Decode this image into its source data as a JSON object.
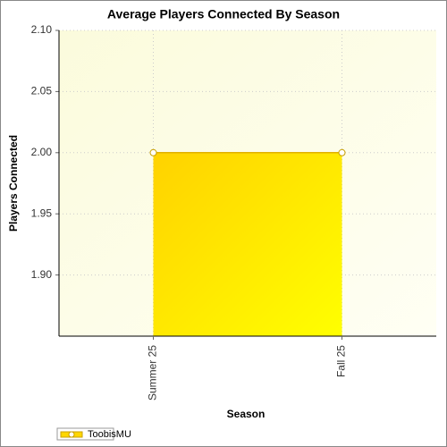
{
  "chart_data": {
    "type": "area",
    "title": "Average Players Connected By Season",
    "x_label": "Season",
    "y_label": "Players Connected",
    "categories": [
      "Summer 25",
      "Fall 25"
    ],
    "series": [
      {
        "name": "ToobisMU",
        "color": "#ffd700",
        "values": [
          2.0,
          2.0
        ]
      }
    ],
    "ylim": [
      1.85,
      2.1
    ],
    "yticks": [
      {
        "value": 1.9,
        "label": "1.90"
      },
      1.95,
      {
        "value": 2.0,
        "label": "2.00"
      },
      2.05,
      {
        "value": 2.1,
        "label": "2.10"
      }
    ],
    "grid": true
  }
}
